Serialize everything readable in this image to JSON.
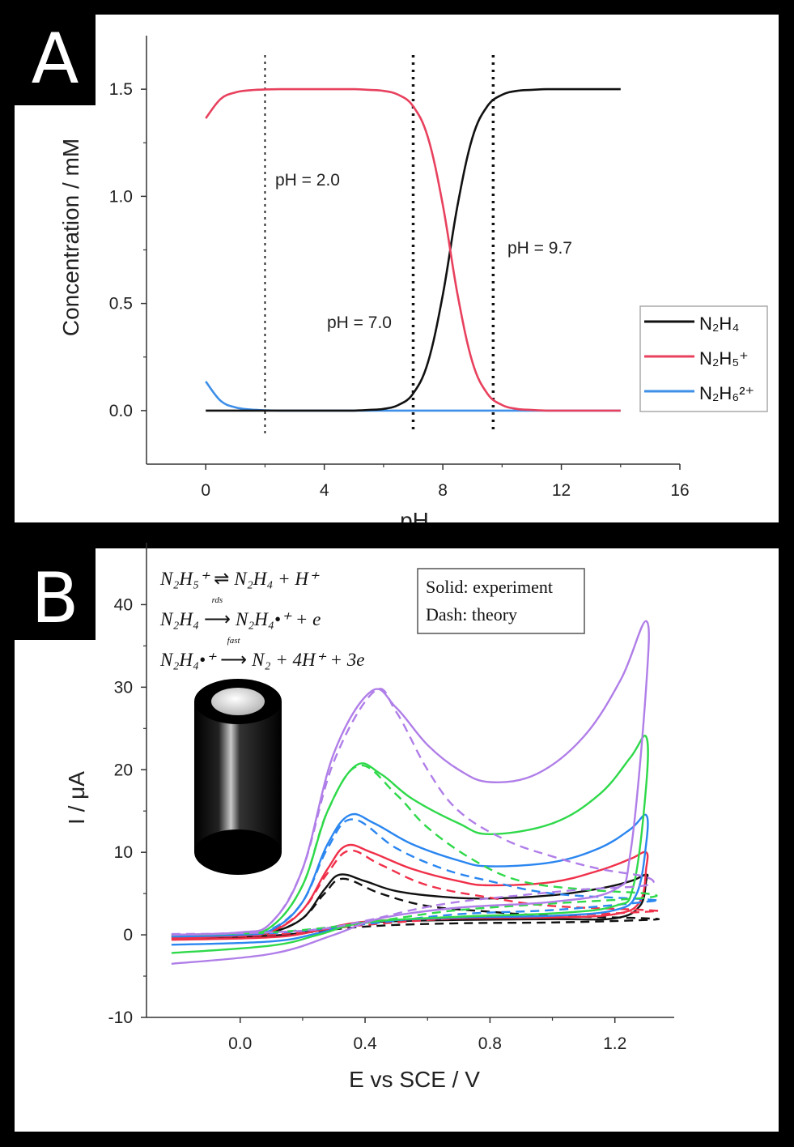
{
  "panels": {
    "a_label": "A",
    "b_label": "B"
  },
  "chart_data": [
    {
      "type": "line",
      "panel": "A",
      "xlabel": "pH",
      "ylabel": "Concentration / mM",
      "xlim": [
        -2,
        16
      ],
      "ylim": [
        -0.25,
        1.75
      ],
      "x_ticks": [
        0,
        4,
        8,
        12,
        16
      ],
      "x_tick_labels": [
        "0",
        "4",
        "8",
        "12",
        "16"
      ],
      "y_ticks": [
        0,
        0.5,
        1.0,
        1.5
      ],
      "y_tick_labels": [
        "0.0",
        "0.5",
        "1.0",
        "1.5"
      ],
      "grid": false,
      "legend_position": "right",
      "x": [
        0,
        0.5,
        1,
        1.5,
        2,
        2.5,
        3,
        3.5,
        4,
        4.5,
        5,
        5.5,
        6,
        6.5,
        7,
        7.5,
        8,
        8.5,
        9,
        9.5,
        10,
        10.5,
        11,
        11.5,
        12,
        12.5,
        13,
        13.5,
        14
      ],
      "series": [
        {
          "name": "N₂H₄",
          "color": "#111111",
          "values": [
            0,
            0,
            0,
            0,
            0,
            0,
            0,
            0,
            0,
            0,
            0,
            0.003,
            0.008,
            0.026,
            0.08,
            0.226,
            0.54,
            0.96,
            1.274,
            1.42,
            1.474,
            1.492,
            1.497,
            1.5,
            1.5,
            1.5,
            1.5,
            1.5,
            1.5
          ]
        },
        {
          "name": "N₂H₅⁺",
          "color": "#e8415e",
          "values": [
            1.364,
            1.454,
            1.485,
            1.495,
            1.499,
            1.5,
            1.5,
            1.5,
            1.5,
            1.5,
            1.5,
            1.497,
            1.492,
            1.474,
            1.42,
            1.274,
            0.96,
            0.54,
            0.226,
            0.08,
            0.026,
            0.008,
            0.003,
            0,
            0,
            0,
            0,
            0,
            0
          ]
        },
        {
          "name": "N₂H₆²⁺",
          "color": "#3d8fe8",
          "values": [
            0.136,
            0.046,
            0.015,
            0.005,
            0.0015,
            0,
            0,
            0,
            0,
            0,
            0,
            0,
            0,
            0,
            0,
            0,
            0,
            0,
            0,
            0,
            0,
            0,
            0,
            0,
            0,
            0,
            0,
            0,
            0
          ]
        }
      ],
      "vlines": [
        {
          "x": 2.0,
          "label": "pH = 2.0",
          "style": "fine-dotted"
        },
        {
          "x": 7.0,
          "label": "pH = 7.0",
          "style": "bold-dotted"
        },
        {
          "x": 9.7,
          "label": "pH = 9.7",
          "style": "bold-dotted"
        }
      ]
    },
    {
      "type": "line",
      "panel": "B",
      "xlabel": "E vs SCE / V",
      "ylabel": "I / μA",
      "xlim": [
        -0.3,
        1.39
      ],
      "ylim": [
        -10,
        47.5
      ],
      "x_ticks": [
        0.0,
        0.4,
        0.8,
        1.2
      ],
      "x_tick_labels": [
        "0.0",
        "0.4",
        "0.8",
        "1.2"
      ],
      "y_ticks": [
        -10,
        0,
        10,
        20,
        30,
        40
      ],
      "y_tick_labels": [
        "-10",
        "0",
        "10",
        "20",
        "30",
        "40"
      ],
      "grid": false,
      "legend_text": [
        "Solid: experiment",
        "Dash: theory"
      ],
      "legend_position": "top-right",
      "equations": [
        {
          "left": "N₂H₅⁺",
          "arrow": "⇌",
          "arrow_label": "",
          "right": "N₂H₄ + H⁺"
        },
        {
          "left": "N₂H₄",
          "arrow": "⟶",
          "arrow_label": "rds",
          "right": "N₂H₄•⁺ + e"
        },
        {
          "left": "N₂H₄•⁺",
          "arrow": "⟶",
          "arrow_label": "fast",
          "right": "N₂ + 4H⁺ + 3e"
        }
      ],
      "series": [
        {
          "color": "#111111",
          "style": "solid",
          "points": [
            [
              -0.22,
              -0.3
            ],
            [
              0,
              -0.1
            ],
            [
              0.1,
              0.3
            ],
            [
              0.2,
              2
            ],
            [
              0.27,
              5.5
            ],
            [
              0.32,
              7.3
            ],
            [
              0.4,
              6.5
            ],
            [
              0.5,
              5.3
            ],
            [
              0.65,
              4.6
            ],
            [
              0.8,
              4.4
            ],
            [
              1.0,
              4.8
            ],
            [
              1.15,
              5.6
            ],
            [
              1.25,
              6.5
            ],
            [
              1.3,
              7.3
            ],
            [
              1.3,
              6.5
            ],
            [
              1.28,
              3.5
            ],
            [
              1.2,
              2
            ],
            [
              1.0,
              1.9
            ],
            [
              0.7,
              1.8
            ],
            [
              0.4,
              1.5
            ],
            [
              0.25,
              0.6
            ],
            [
              0.1,
              -0.2
            ],
            [
              -0.22,
              -0.5
            ]
          ]
        },
        {
          "color": "#111111",
          "style": "dashed",
          "points": [
            [
              -0.22,
              -0.1
            ],
            [
              0,
              0
            ],
            [
              0.1,
              0.3
            ],
            [
              0.2,
              2
            ],
            [
              0.27,
              5
            ],
            [
              0.33,
              6.8
            ],
            [
              0.45,
              5
            ],
            [
              0.6,
              3.5
            ],
            [
              0.8,
              2.8
            ],
            [
              1.0,
              2.3
            ],
            [
              1.3,
              2
            ],
            [
              1.3,
              1.8
            ],
            [
              1.0,
              1.5
            ],
            [
              0.7,
              1.4
            ],
            [
              0.4,
              1
            ],
            [
              0.1,
              -0.1
            ],
            [
              -0.22,
              -0.3
            ]
          ]
        },
        {
          "color": "#f0304a",
          "style": "solid",
          "points": [
            [
              -0.22,
              -0.4
            ],
            [
              0,
              -0.1
            ],
            [
              0.1,
              0.4
            ],
            [
              0.2,
              3
            ],
            [
              0.28,
              8
            ],
            [
              0.34,
              10.8
            ],
            [
              0.42,
              10
            ],
            [
              0.55,
              8
            ],
            [
              0.7,
              6.5
            ],
            [
              0.8,
              6
            ],
            [
              1.0,
              6.4
            ],
            [
              1.15,
              7.8
            ],
            [
              1.25,
              9.2
            ],
            [
              1.3,
              10
            ],
            [
              1.3,
              8
            ],
            [
              1.28,
              4
            ],
            [
              1.2,
              2.5
            ],
            [
              1.0,
              2.1
            ],
            [
              0.7,
              2
            ],
            [
              0.4,
              1.6
            ],
            [
              0.25,
              0.5
            ],
            [
              0.1,
              -0.3
            ],
            [
              -0.22,
              -0.6
            ]
          ]
        },
        {
          "color": "#f0304a",
          "style": "dashed",
          "points": [
            [
              -0.22,
              -0.1
            ],
            [
              0,
              0.1
            ],
            [
              0.1,
              0.5
            ],
            [
              0.2,
              3
            ],
            [
              0.28,
              7.5
            ],
            [
              0.35,
              10.2
            ],
            [
              0.45,
              8.5
            ],
            [
              0.6,
              6
            ],
            [
              0.8,
              4.5
            ],
            [
              1.0,
              3.5
            ],
            [
              1.3,
              3
            ],
            [
              1.3,
              2.8
            ],
            [
              1.0,
              2.3
            ],
            [
              0.7,
              2
            ],
            [
              0.4,
              1.2
            ],
            [
              0.1,
              0
            ],
            [
              -0.22,
              -0.3
            ]
          ]
        },
        {
          "color": "#2b86f0",
          "style": "solid",
          "points": [
            [
              -0.22,
              -0.2
            ],
            [
              0,
              0
            ],
            [
              0.1,
              0.6
            ],
            [
              0.2,
              4
            ],
            [
              0.28,
              11
            ],
            [
              0.35,
              14.5
            ],
            [
              0.43,
              13.5
            ],
            [
              0.55,
              11
            ],
            [
              0.7,
              9
            ],
            [
              0.8,
              8.3
            ],
            [
              1.0,
              8.8
            ],
            [
              1.15,
              10.5
            ],
            [
              1.25,
              12.8
            ],
            [
              1.3,
              14.5
            ],
            [
              1.3,
              11
            ],
            [
              1.27,
              5
            ],
            [
              1.2,
              3
            ],
            [
              1.0,
              2.3
            ],
            [
              0.7,
              2.1
            ],
            [
              0.4,
              1.5
            ],
            [
              0.25,
              0.2
            ],
            [
              0.1,
              -0.8
            ],
            [
              -0.22,
              -1.2
            ]
          ]
        },
        {
          "color": "#2b86f0",
          "style": "dashed",
          "points": [
            [
              -0.22,
              0
            ],
            [
              0,
              0.2
            ],
            [
              0.1,
              0.7
            ],
            [
              0.2,
              4
            ],
            [
              0.28,
              10.5
            ],
            [
              0.36,
              14
            ],
            [
              0.5,
              10.5
            ],
            [
              0.65,
              8
            ],
            [
              0.8,
              6.5
            ],
            [
              1.0,
              5
            ],
            [
              1.3,
              4.3
            ],
            [
              1.3,
              4
            ],
            [
              1.0,
              3
            ],
            [
              0.7,
              2.5
            ],
            [
              0.4,
              1.3
            ],
            [
              0.1,
              0.2
            ],
            [
              -0.22,
              0
            ]
          ]
        },
        {
          "color": "#2fd94a",
          "style": "solid",
          "points": [
            [
              -0.22,
              0
            ],
            [
              0,
              0.2
            ],
            [
              0.1,
              1
            ],
            [
              0.2,
              6
            ],
            [
              0.28,
              15
            ],
            [
              0.37,
              20.5
            ],
            [
              0.45,
              19.5
            ],
            [
              0.55,
              16.5
            ],
            [
              0.7,
              13.5
            ],
            [
              0.8,
              12.2
            ],
            [
              1.0,
              13.5
            ],
            [
              1.15,
              17
            ],
            [
              1.25,
              21.5
            ],
            [
              1.3,
              24
            ],
            [
              1.3,
              18
            ],
            [
              1.26,
              6
            ],
            [
              1.2,
              3.5
            ],
            [
              1.0,
              2.6
            ],
            [
              0.7,
              2.2
            ],
            [
              0.4,
              1.5
            ],
            [
              0.25,
              0
            ],
            [
              0.1,
              -1.3
            ],
            [
              -0.22,
              -2.2
            ]
          ]
        },
        {
          "color": "#2fd94a",
          "style": "dashed",
          "points": [
            [
              -0.22,
              0
            ],
            [
              0,
              0.2
            ],
            [
              0.1,
              1
            ],
            [
              0.2,
              6
            ],
            [
              0.28,
              15
            ],
            [
              0.38,
              20.5
            ],
            [
              0.5,
              17
            ],
            [
              0.6,
              13
            ],
            [
              0.75,
              9
            ],
            [
              0.9,
              6.5
            ],
            [
              1.1,
              5.5
            ],
            [
              1.3,
              5
            ],
            [
              1.3,
              4.5
            ],
            [
              1.0,
              3.8
            ],
            [
              0.7,
              3
            ],
            [
              0.5,
              2
            ],
            [
              0.35,
              1.2
            ],
            [
              0.1,
              0.3
            ],
            [
              -0.22,
              0
            ]
          ]
        },
        {
          "color": "#b07ee8",
          "style": "solid",
          "points": [
            [
              -0.22,
              0
            ],
            [
              0,
              0.3
            ],
            [
              0.1,
              1.5
            ],
            [
              0.2,
              8
            ],
            [
              0.3,
              22
            ],
            [
              0.42,
              29.5
            ],
            [
              0.5,
              27.5
            ],
            [
              0.6,
              23
            ],
            [
              0.7,
              20
            ],
            [
              0.8,
              18.5
            ],
            [
              0.95,
              19.5
            ],
            [
              1.1,
              24
            ],
            [
              1.22,
              31
            ],
            [
              1.3,
              38
            ],
            [
              1.3,
              30
            ],
            [
              1.25,
              10
            ],
            [
              1.2,
              5.5
            ],
            [
              1.0,
              4
            ],
            [
              0.7,
              3.3
            ],
            [
              0.45,
              2
            ],
            [
              0.3,
              0
            ],
            [
              0.1,
              -2.3
            ],
            [
              -0.22,
              -3.5
            ]
          ]
        },
        {
          "color": "#b07ee8",
          "style": "dashed",
          "points": [
            [
              -0.22,
              0.1
            ],
            [
              0,
              0.3
            ],
            [
              0.1,
              1.5
            ],
            [
              0.2,
              8
            ],
            [
              0.3,
              21
            ],
            [
              0.43,
              29.5
            ],
            [
              0.5,
              27
            ],
            [
              0.6,
              20
            ],
            [
              0.7,
              15
            ],
            [
              0.85,
              11.5
            ],
            [
              1.0,
              9.5
            ],
            [
              1.15,
              8
            ],
            [
              1.3,
              7
            ],
            [
              1.3,
              6
            ],
            [
              1.1,
              5.5
            ],
            [
              0.9,
              4.8
            ],
            [
              0.7,
              4
            ],
            [
              0.55,
              3
            ],
            [
              0.4,
              1.7
            ],
            [
              0.2,
              0.5
            ],
            [
              -0.22,
              0
            ]
          ]
        }
      ]
    }
  ]
}
